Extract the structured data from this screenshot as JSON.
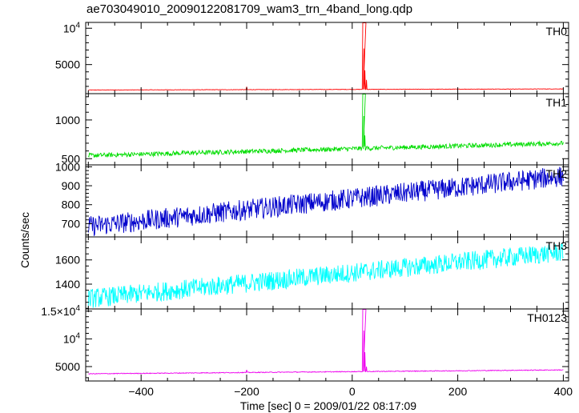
{
  "chart_data": {
    "type": "line",
    "title": "ae703049010_20090122081709_wam3_trn_4band_long.qdp",
    "xlabel": "Time [sec] 0 = 2009/01/22 08:17:09",
    "ylabel": "Counts/sec",
    "xlim": [
      -505,
      410
    ],
    "x_ticks": [
      -400,
      -200,
      0,
      200,
      400
    ],
    "x_tick_labels": [
      "−400",
      "−200",
      "0",
      "200",
      "400"
    ],
    "x_minor_step": 50,
    "panels": [
      {
        "name": "TH0",
        "color": "#ff0000",
        "ylim": [
          1000,
          10800
        ],
        "ticks": [
          5000,
          10000
        ],
        "tick_labels": [
          {
            "base": "5000",
            "exp": ""
          },
          {
            "base": "10",
            "exp": "4"
          }
        ],
        "minor_step": 1000,
        "trend": [
          [
            -500,
            1500
          ],
          [
            400,
            1650
          ]
        ],
        "noise": 30,
        "peaks": [
          {
            "x": 20,
            "y": 10800,
            "x_end": 26
          },
          {
            "x": 22,
            "y": 7200
          },
          {
            "x": 24,
            "y": 4200
          },
          {
            "x": 27,
            "y": 2900
          }
        ],
        "blips": [
          {
            "x": -200,
            "y": 1950
          }
        ]
      },
      {
        "name": "TH1",
        "color": "#00dd00",
        "ylim": [
          420,
          1340
        ],
        "ticks": [
          500,
          1000
        ],
        "tick_labels": [
          {
            "base": "500",
            "exp": ""
          },
          {
            "base": "1000",
            "exp": ""
          }
        ],
        "minor_step": 100,
        "trend": [
          [
            -500,
            540
          ],
          [
            400,
            700
          ]
        ],
        "noise": 30,
        "peaks": [
          {
            "x": 20,
            "y": 1340,
            "x_end": 25
          },
          {
            "x": 22,
            "y": 1050
          },
          {
            "x": 24,
            "y": 800
          },
          {
            "x": 27,
            "y": 650
          }
        ],
        "blips": []
      },
      {
        "name": "TH2",
        "color": "#0000cc",
        "ylim": [
          630,
          1010
        ],
        "ticks": [
          700,
          800,
          900,
          1000
        ],
        "tick_labels": [
          {
            "base": "700",
            "exp": ""
          },
          {
            "base": "800",
            "exp": ""
          },
          {
            "base": "900",
            "exp": ""
          },
          {
            "base": "1000",
            "exp": ""
          }
        ],
        "minor_step": 20,
        "trend": [
          [
            -500,
            685
          ],
          [
            400,
            950
          ]
        ],
        "noise": 55,
        "peaks": [],
        "blips": []
      },
      {
        "name": "TH3",
        "color": "#00ffff",
        "ylim": [
          1195,
          1790
        ],
        "ticks": [
          1400,
          1600
        ],
        "tick_labels": [
          {
            "base": "1400",
            "exp": ""
          },
          {
            "base": "1600",
            "exp": ""
          }
        ],
        "minor_step": 50,
        "trend": [
          [
            -500,
            1280
          ],
          [
            400,
            1665
          ]
        ],
        "noise": 80,
        "peaks": [],
        "blips": []
      },
      {
        "name": "TH0123",
        "color": "#ee00ee",
        "ylim": [
          2400,
          15400
        ],
        "ticks": [
          5000,
          10000,
          15000
        ],
        "tick_labels": [
          {
            "base": "5000",
            "exp": ""
          },
          {
            "base": "10",
            "exp": "4"
          },
          {
            "base": "1.5×10",
            "exp": "4"
          }
        ],
        "minor_step": 1000,
        "trend": [
          [
            -500,
            3700
          ],
          [
            400,
            4400
          ]
        ],
        "noise": 70,
        "peaks": [
          {
            "x": 20,
            "y": 15400,
            "x_end": 26
          },
          {
            "x": 22,
            "y": 11500
          },
          {
            "x": 24,
            "y": 7600
          },
          {
            "x": 27,
            "y": 5000
          }
        ],
        "blips": [
          {
            "x": -200,
            "y": 4400
          }
        ]
      }
    ]
  }
}
